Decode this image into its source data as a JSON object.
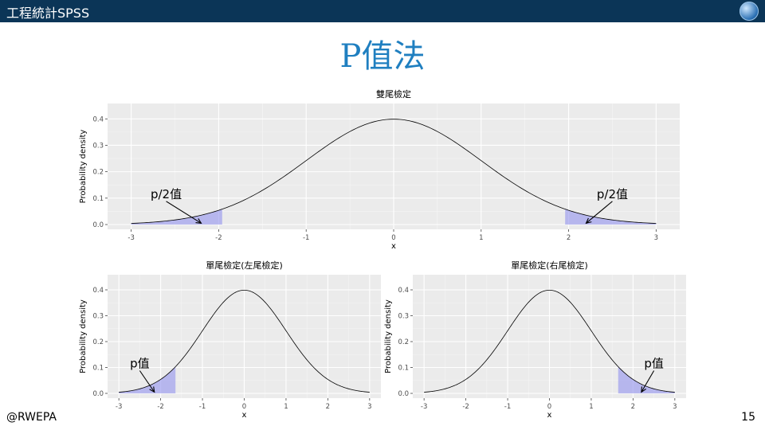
{
  "header": {
    "app_title": "工程統計SPSS",
    "logo_icon": "globe-logo-icon"
  },
  "slide": {
    "title": "P值法",
    "footer_left": "@RWEPA",
    "page_number": "15"
  },
  "colors": {
    "header_bg": "#0b3557",
    "title_color": "#1f7fc0",
    "panel_bg": "#ebebeb",
    "shade_fill": "#9999ee"
  },
  "chart_data": [
    {
      "type": "area",
      "title": "雙尾檢定",
      "xlabel": "x",
      "ylabel": "Probability density",
      "xlim": [
        -3,
        3
      ],
      "ylim": [
        0,
        0.4
      ],
      "x_ticks": [
        "-3",
        "-2",
        "-1",
        "0",
        "1",
        "2",
        "3"
      ],
      "y_ticks": [
        "0.0",
        "0.1",
        "0.2",
        "0.3",
        "0.4"
      ],
      "curve": "standard normal density",
      "shaded_regions": [
        [
          -3,
          -1.96
        ],
        [
          1.96,
          3
        ]
      ],
      "annotations": [
        {
          "text": "p/2值",
          "at": [
            -2.6,
            0.1
          ],
          "arrow_to": [
            -2.2,
            0.005
          ]
        },
        {
          "text": "p/2值",
          "at": [
            2.5,
            0.1
          ],
          "arrow_to": [
            2.2,
            0.005
          ]
        }
      ]
    },
    {
      "type": "area",
      "title": "單尾檢定(左尾檢定)",
      "xlabel": "x",
      "ylabel": "Probability density",
      "xlim": [
        -3,
        3
      ],
      "ylim": [
        0,
        0.4
      ],
      "x_ticks": [
        "-3",
        "-2",
        "-1",
        "0",
        "1",
        "2",
        "3"
      ],
      "y_ticks": [
        "0.0",
        "0.1",
        "0.2",
        "0.3",
        "0.4"
      ],
      "curve": "standard normal density",
      "shaded_regions": [
        [
          -3,
          -1.645
        ]
      ],
      "annotations": [
        {
          "text": "p值",
          "at": [
            -2.5,
            0.1
          ],
          "arrow_to": [
            -2.15,
            0.005
          ]
        }
      ]
    },
    {
      "type": "area",
      "title": "單尾檢定(右尾檢定)",
      "xlabel": "x",
      "ylabel": "Probability density",
      "xlim": [
        -3,
        3
      ],
      "ylim": [
        0,
        0.4
      ],
      "x_ticks": [
        "-3",
        "-2",
        "-1",
        "0",
        "1",
        "2",
        "3"
      ],
      "y_ticks": [
        "0.0",
        "0.1",
        "0.2",
        "0.3",
        "0.4"
      ],
      "curve": "standard normal density",
      "shaded_regions": [
        [
          1.645,
          3
        ]
      ],
      "annotations": [
        {
          "text": "p值",
          "at": [
            2.5,
            0.1
          ],
          "arrow_to": [
            2.2,
            0.005
          ]
        }
      ]
    }
  ]
}
